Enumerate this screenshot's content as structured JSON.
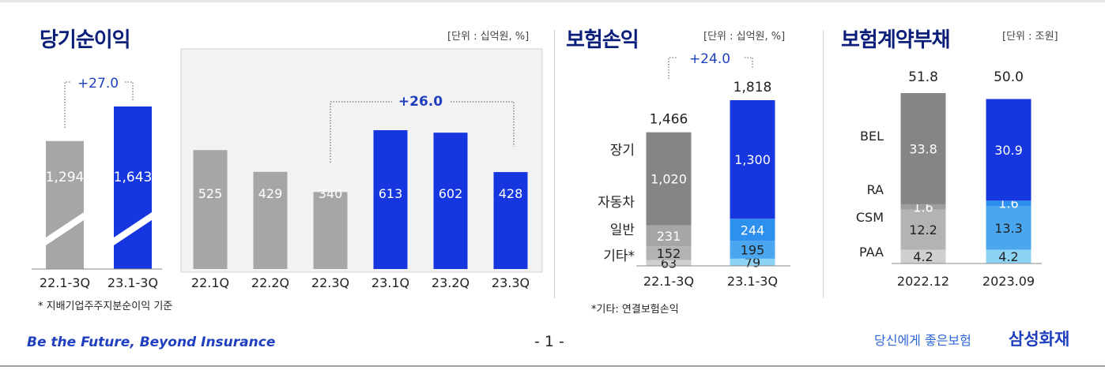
{
  "panel1": {
    "title": "당기순이익",
    "unit": "[단위 : 십억원, %]",
    "footnote": "* 지배기업주주지분순이익 기준",
    "ytd_change": "+27.0",
    "q_change": "+26.0"
  },
  "panel2": {
    "title": "보험손익",
    "unit": "[단위 : 십억원, %]",
    "footnote": "*기타: 연결보험손익",
    "change": "+24.0"
  },
  "panel3": {
    "title": "보험계약부채",
    "unit": "[단위 : 조원]"
  },
  "footer": {
    "tagline": "Be the Future, Beyond Insurance",
    "page": "- 1 -",
    "slogan": "당신에게 좋은보험",
    "brand": "삼성화재"
  },
  "colors": {
    "gray": "#a6a6a6",
    "dark_gray": "#858585",
    "blue": "#1636e0",
    "light_blue": "#4aa7ef",
    "pale_blue": "#8cd3f3",
    "title_navy": "#0b1e7a"
  },
  "chart_data": [
    {
      "type": "bar",
      "title": "당기순이익",
      "categories": [
        "22.1-3Q",
        "23.1-3Q"
      ],
      "values": [
        1294,
        1643
      ],
      "value_labels": [
        "1,294",
        "1,643"
      ],
      "annotation": "+27.0"
    },
    {
      "type": "bar",
      "title": "당기순이익 (분기)",
      "categories": [
        "22.1Q",
        "22.2Q",
        "22.3Q",
        "23.1Q",
        "23.2Q",
        "23.3Q"
      ],
      "values": [
        525,
        429,
        340,
        613,
        602,
        428
      ],
      "value_labels": [
        "525",
        "429",
        "340",
        "613",
        "602",
        "428"
      ],
      "annotation": "+26.0"
    },
    {
      "type": "bar",
      "stacked": true,
      "title": "보험손익",
      "categories": [
        "22.1-3Q",
        "23.1-3Q"
      ],
      "totals": [
        1466,
        1818
      ],
      "total_labels": [
        "1,466",
        "1,818"
      ],
      "series": [
        {
          "name": "장기",
          "values": [
            1020,
            1300
          ],
          "labels": [
            "1,020",
            "1,300"
          ]
        },
        {
          "name": "자동차",
          "values": [
            231,
            244
          ],
          "labels": [
            "231",
            "244"
          ]
        },
        {
          "name": "일반",
          "values": [
            152,
            195
          ],
          "labels": [
            "152",
            "195"
          ]
        },
        {
          "name": "기타*",
          "values": [
            63,
            79
          ],
          "labels": [
            "63",
            "79"
          ]
        }
      ],
      "annotation": "+24.0"
    },
    {
      "type": "bar",
      "stacked": true,
      "title": "보험계약부채",
      "categories": [
        "2022.12",
        "2023.09"
      ],
      "totals": [
        51.8,
        50.0
      ],
      "total_labels": [
        "51.8",
        "50.0"
      ],
      "series": [
        {
          "name": "BEL",
          "values": [
            33.8,
            30.9
          ],
          "labels": [
            "33.8",
            "30.9"
          ]
        },
        {
          "name": "RA",
          "values": [
            1.6,
            1.6
          ],
          "labels": [
            "1.6",
            "1.6"
          ]
        },
        {
          "name": "CSM",
          "values": [
            12.2,
            13.3
          ],
          "labels": [
            "12.2",
            "13.3"
          ]
        },
        {
          "name": "PAA",
          "values": [
            4.2,
            4.2
          ],
          "labels": [
            "4.2",
            "4.2"
          ]
        }
      ]
    }
  ]
}
